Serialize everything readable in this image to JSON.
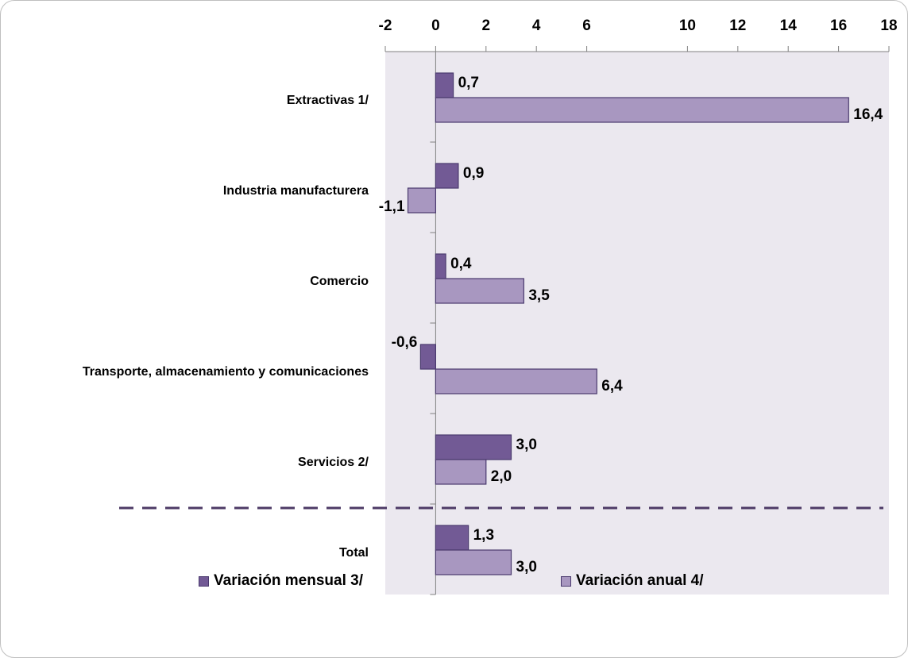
{
  "chart_data": {
    "type": "bar",
    "orientation": "horizontal",
    "categories": [
      "Extractivas 1/",
      "Industria manufacturera",
      "Comercio",
      "Transporte, almacenamiento y comunicaciones",
      "Servicios 2/",
      "Total"
    ],
    "series": [
      {
        "name": "Variación mensual 3/",
        "color": "#725a95",
        "values": [
          0.7,
          0.9,
          0.4,
          -0.6,
          3.0,
          1.3
        ],
        "labels": [
          "0,7",
          "0,9",
          "0,4",
          "-0,6",
          "3,0",
          "1,3"
        ]
      },
      {
        "name": "Variación anual 4/",
        "color": "#a897c0",
        "values": [
          16.4,
          -1.1,
          3.5,
          6.4,
          2.0,
          3.0
        ],
        "labels": [
          "16,4",
          "-1,1",
          "3,5",
          "6,4",
          "2,0",
          "3,0"
        ]
      }
    ],
    "xlim": [
      -2,
      18
    ],
    "xticks": [
      "-2",
      "0",
      "2",
      "4",
      "6",
      "10",
      "12",
      "14",
      "16",
      "18"
    ],
    "xaxis_position": "top",
    "plot_background": "#ebe8ef",
    "separator": "dashed line above Total",
    "legend_position": "bottom"
  }
}
